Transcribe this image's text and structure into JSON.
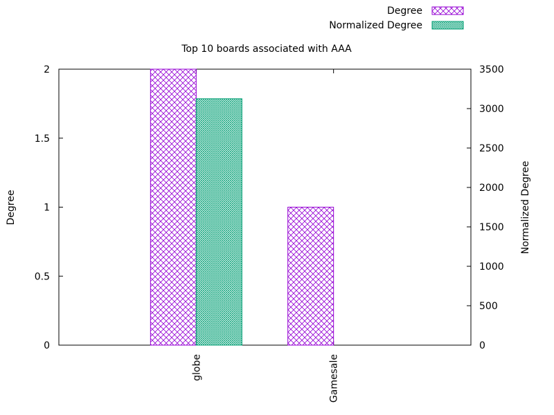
{
  "chart_data": {
    "type": "bar",
    "title": "Top 10 boards associated with AAA",
    "categories": [
      "globe",
      "Gamesale"
    ],
    "series": [
      {
        "name": "Degree",
        "axis": "left",
        "values": [
          2,
          1
        ],
        "color": "#9400d3",
        "pattern": "crosshatch"
      },
      {
        "name": "Normalized Degree",
        "axis": "right",
        "values": [
          3125,
          0
        ],
        "color": "#009e73",
        "pattern": "fine-mesh"
      }
    ],
    "ylabel": "Degree",
    "y2label": "Normalized Degree",
    "ylim": [
      0,
      2
    ],
    "y2lim": [
      0,
      3500
    ],
    "yticks": [
      "0",
      "0.5",
      "1",
      "1.5",
      "2"
    ],
    "y2ticks": [
      "0",
      "500",
      "1000",
      "1500",
      "2000",
      "2500",
      "3000",
      "3500"
    ],
    "legend_position": "top-right",
    "grid": false
  }
}
